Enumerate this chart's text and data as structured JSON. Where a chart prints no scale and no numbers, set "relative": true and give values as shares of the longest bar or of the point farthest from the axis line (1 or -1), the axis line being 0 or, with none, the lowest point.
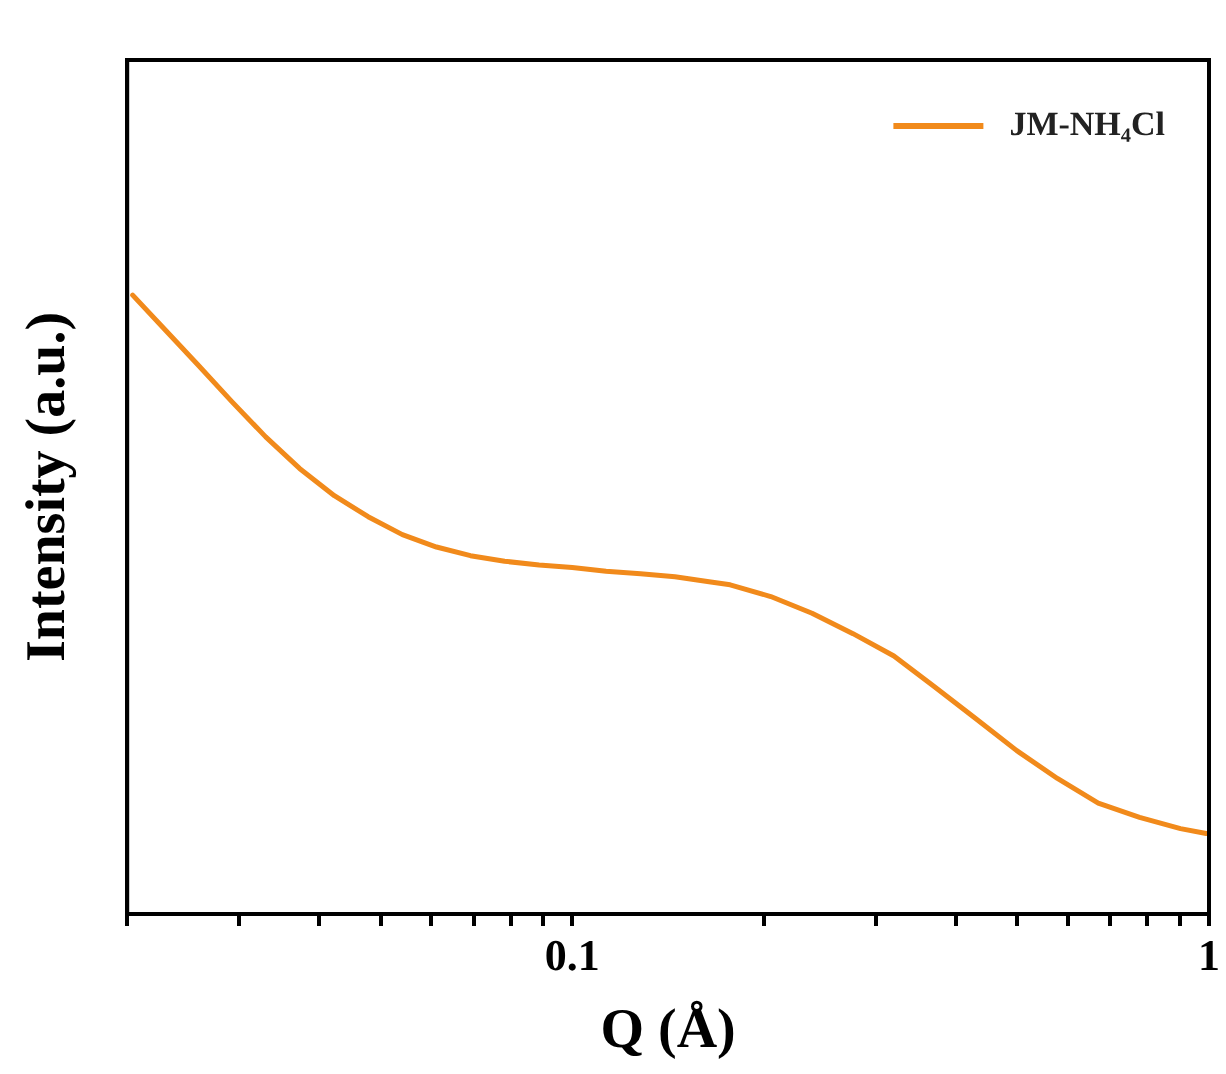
{
  "chart_data": {
    "type": "line",
    "xlabel": "Q (Å)",
    "ylabel": "Intensity (a.u.)",
    "relative": true,
    "log": "x",
    "grid": false,
    "legend": "top right",
    "marker": "none",
    "line_style": "solid",
    "xlim": [
      0.02,
      1
    ],
    "xticks": [
      {
        "value": 0.02,
        "label": null
      },
      {
        "value": 0.03,
        "label": null
      },
      {
        "value": 0.04,
        "label": null
      },
      {
        "value": 0.05,
        "label": null
      },
      {
        "value": 0.06,
        "label": null
      },
      {
        "value": 0.07,
        "label": null
      },
      {
        "value": 0.08,
        "label": null
      },
      {
        "value": 0.09,
        "label": null
      },
      0.1,
      {
        "value": 0.2,
        "label": null
      },
      {
        "value": 0.3,
        "label": null
      },
      {
        "value": 0.4,
        "label": null
      },
      {
        "value": 0.5,
        "label": null
      },
      {
        "value": 0.6,
        "label": null
      },
      {
        "value": 0.7,
        "label": null
      },
      {
        "value": 0.8,
        "label": null
      },
      {
        "value": 0.9,
        "label": null
      },
      1
    ],
    "series": [
      {
        "name": "JM-NH₄Cl",
        "color": "#f18a1b",
        "x": [
          0.0204,
          0.0228,
          0.0258,
          0.0292,
          0.033,
          0.0373,
          0.0423,
          0.0478,
          0.0541,
          0.0612,
          0.0692,
          0.0783,
          0.0887,
          0.1,
          0.113,
          0.128,
          0.145,
          0.164,
          0.177,
          0.205,
          0.238,
          0.276,
          0.32,
          0.371,
          0.43,
          0.499,
          0.578,
          0.67,
          0.778,
          0.902,
          0.99
        ],
        "values": [
          1.0,
          0.947,
          0.888,
          0.828,
          0.771,
          0.72,
          0.676,
          0.642,
          0.613,
          0.593,
          0.579,
          0.57,
          0.564,
          0.56,
          0.554,
          0.55,
          0.545,
          0.537,
          0.532,
          0.513,
          0.486,
          0.453,
          0.417,
          0.367,
          0.316,
          0.264,
          0.219,
          0.179,
          0.156,
          0.138,
          0.13
        ]
      }
    ]
  }
}
